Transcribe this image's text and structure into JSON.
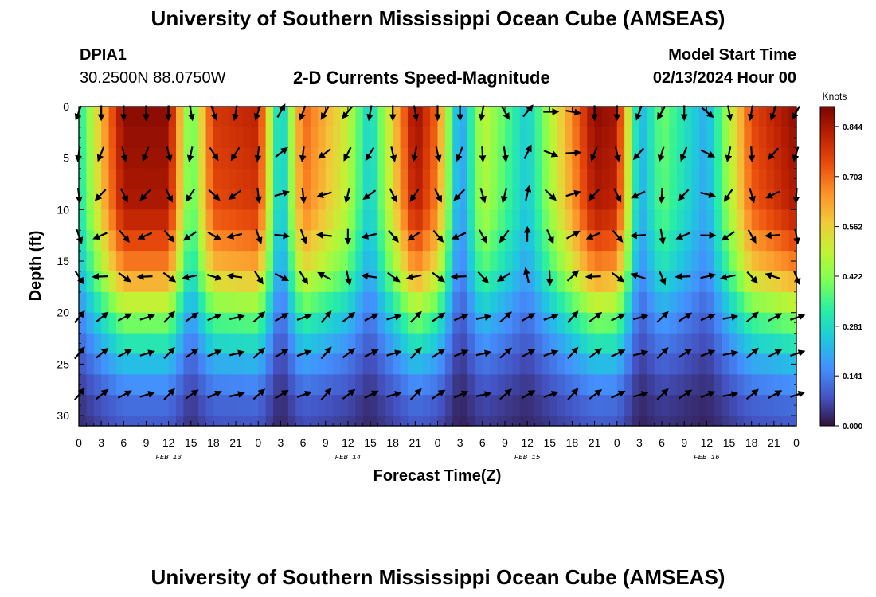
{
  "page": {
    "title_top": "University of Southern Mississippi Ocean Cube (AMSEAS)",
    "title_bottom": "University of Southern Mississippi Ocean Cube (AMSEAS)",
    "station_id": "DPIA1",
    "station_coords": "30.2500N  88.0750W",
    "model_start_label": "Model Start Time",
    "model_start_value": "02/13/2024 Hour 00"
  },
  "chart_data": {
    "type": "heatmap",
    "title": "2-D Currents Speed-Magnitude",
    "xlabel": "Forecast Time(Z)",
    "ylabel": "Depth (ft)",
    "xlim": [
      0,
      96
    ],
    "ylim": [
      0,
      31
    ],
    "x_tick_labels": [
      "0",
      "3",
      "6",
      "9",
      "12",
      "15",
      "18",
      "21",
      "0",
      "3",
      "6",
      "9",
      "12",
      "15",
      "18",
      "21",
      "0",
      "3",
      "6",
      "9",
      "12",
      "15",
      "18",
      "21",
      "0",
      "3",
      "6",
      "9",
      "12",
      "15",
      "18",
      "21",
      "0"
    ],
    "y_ticks": [
      0,
      5,
      10,
      15,
      20,
      25,
      30
    ],
    "day_labels": [
      "FEB 13",
      "FEB 14",
      "FEB 15",
      "FEB 16"
    ],
    "colorbar": {
      "label": "Knots",
      "min": 0.0,
      "max": 0.9,
      "tick_values": [
        0.0,
        0.141,
        0.281,
        0.422,
        0.562,
        0.703,
        0.844
      ],
      "tick_labels": [
        "0.000",
        "0.141",
        "0.281",
        "0.422",
        "0.562",
        "0.703",
        "0.844"
      ],
      "colors": [
        "#30123b",
        "#4454c4",
        "#4490fe",
        "#1fc8de",
        "#29efa2",
        "#7dff56",
        "#c1f334",
        "#f1ca3a",
        "#fe922a",
        "#ea4e0d",
        "#be2102",
        "#7a0403"
      ]
    },
    "depth_profile_ft": [
      0,
      2,
      4,
      6,
      8,
      10,
      12,
      14,
      16,
      18,
      20,
      22,
      24,
      26,
      28,
      30,
      31
    ],
    "speed_time_profile": [
      {
        "t": 0,
        "v": 0.3
      },
      {
        "t": 3,
        "v": 0.6
      },
      {
        "t": 6,
        "v": 0.88
      },
      {
        "t": 12,
        "v": 0.88
      },
      {
        "t": 15,
        "v": 0.35
      },
      {
        "t": 18,
        "v": 0.78
      },
      {
        "t": 24,
        "v": 0.82
      },
      {
        "t": 27,
        "v": 0.2
      },
      {
        "t": 30,
        "v": 0.72
      },
      {
        "t": 36,
        "v": 0.5
      },
      {
        "t": 39,
        "v": 0.25
      },
      {
        "t": 45,
        "v": 0.88
      },
      {
        "t": 48,
        "v": 0.7
      },
      {
        "t": 51,
        "v": 0.15
      },
      {
        "t": 54,
        "v": 0.5
      },
      {
        "t": 60,
        "v": 0.25
      },
      {
        "t": 69,
        "v": 0.88
      },
      {
        "t": 72,
        "v": 0.85
      },
      {
        "t": 75,
        "v": 0.2
      },
      {
        "t": 78,
        "v": 0.4
      },
      {
        "t": 84,
        "v": 0.2
      },
      {
        "t": 90,
        "v": 0.75
      },
      {
        "t": 96,
        "v": 0.88
      }
    ],
    "speed_depth_decay": [
      {
        "d": 0,
        "f": 1.0
      },
      {
        "d": 10,
        "f": 0.95
      },
      {
        "d": 16,
        "f": 0.75
      },
      {
        "d": 20,
        "f": 0.5
      },
      {
        "d": 24,
        "f": 0.3
      },
      {
        "d": 28,
        "f": 0.15
      },
      {
        "d": 31,
        "f": 0.1
      }
    ],
    "vector_rows_depth_ft": [
      0.5,
      4.5,
      8.5,
      12.5,
      16.5,
      20.5,
      24,
      28
    ],
    "vector_col_times_h": [
      0,
      3,
      6,
      9,
      12,
      15,
      18,
      21,
      24,
      27,
      30,
      33,
      36,
      39,
      42,
      45,
      48,
      51,
      54,
      57,
      60,
      63,
      66,
      69,
      72,
      75,
      78,
      81,
      84,
      87,
      90,
      93,
      96
    ],
    "vector_direction_deg_surface": [
      200,
      180,
      180,
      180,
      180,
      170,
      160,
      190,
      200,
      30,
      200,
      210,
      220,
      190,
      180,
      170,
      180,
      180,
      190,
      150,
      40,
      90,
      100,
      180,
      180,
      200,
      210,
      180,
      130,
      170,
      190,
      200,
      210
    ]
  }
}
